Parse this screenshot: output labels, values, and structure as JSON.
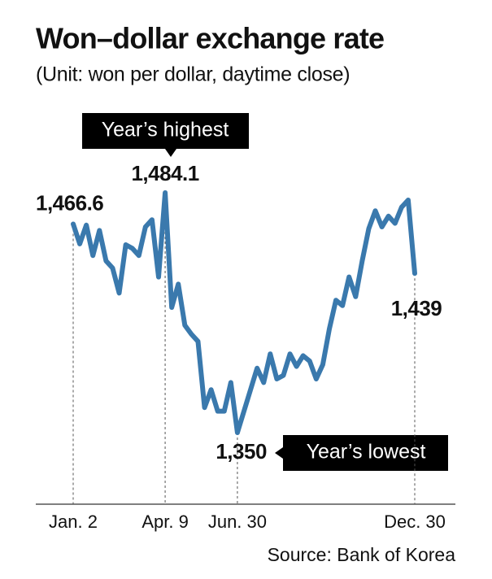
{
  "chart_data": {
    "type": "line",
    "title": "Won–dollar exchange rate",
    "subtitle": "(Unit: won per dollar, daytime close)",
    "categories": [
      "Jan. 2",
      null,
      null,
      null,
      null,
      null,
      null,
      null,
      null,
      null,
      null,
      null,
      null,
      null,
      "Apr. 9",
      null,
      null,
      null,
      null,
      null,
      null,
      null,
      null,
      null,
      null,
      "Jun. 30",
      null,
      null,
      null,
      null,
      null,
      null,
      null,
      null,
      null,
      null,
      null,
      null,
      null,
      null,
      null,
      null,
      null,
      null,
      null,
      null,
      null,
      null,
      null,
      null,
      null,
      null,
      "Dec. 30"
    ],
    "values": [
      1466.6,
      1455.5,
      1466,
      1449,
      1463,
      1446,
      1442,
      1428,
      1455,
      1453,
      1449,
      1465,
      1469,
      1437,
      1484.1,
      1420,
      1433,
      1410,
      1405,
      1401,
      1364,
      1374,
      1362,
      1362,
      1378,
      1350,
      1362,
      1374,
      1386,
      1378,
      1394,
      1380,
      1382,
      1394,
      1387,
      1393,
      1390,
      1380,
      1388,
      1408,
      1424,
      1421,
      1437,
      1426,
      1446,
      1464,
      1474,
      1465,
      1471,
      1467,
      1476,
      1480,
      1439
    ],
    "value_labels": [
      "1,466.6",
      null,
      null,
      null,
      null,
      null,
      null,
      null,
      null,
      null,
      null,
      null,
      null,
      null,
      "1,484.1",
      null,
      null,
      null,
      null,
      null,
      null,
      null,
      null,
      null,
      null,
      "1,350",
      null,
      null,
      null,
      null,
      null,
      null,
      null,
      null,
      null,
      null,
      null,
      null,
      null,
      null,
      null,
      null,
      null,
      null,
      null,
      null,
      null,
      null,
      null,
      null,
      null,
      null,
      "1,439"
    ],
    "color": "#3a79ad",
    "ylim": [
      1310,
      1500
    ],
    "annotations": [
      "Year’s highest",
      "Year’s lowest"
    ],
    "source": "Source: Bank of Korea"
  }
}
